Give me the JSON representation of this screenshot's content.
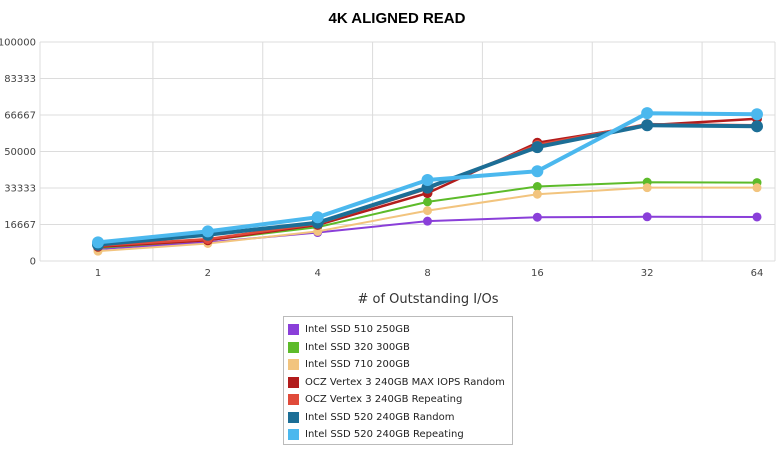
{
  "chart_data": {
    "type": "line",
    "title": "4K ALIGNED READ",
    "xlabel": "# of Outstanding I/Os",
    "ylabel": "",
    "categories": [
      "1",
      "2",
      "4",
      "8",
      "16",
      "32",
      "64"
    ],
    "yticks": [
      "0",
      "16667",
      "33333",
      "50000",
      "66667",
      "83333",
      "100000"
    ],
    "ylim": [
      0,
      100000
    ],
    "grid": true,
    "legend_position": "bottom",
    "series": [
      {
        "name": "Intel SSD 510 250GB",
        "color": "#8a3fd9",
        "values": [
          5500,
          8500,
          13000,
          18200,
          20000,
          20200,
          20100
        ]
      },
      {
        "name": "Intel SSD 320 300GB",
        "color": "#5dbb2a",
        "values": [
          6000,
          9500,
          15500,
          27000,
          34000,
          36000,
          35800
        ]
      },
      {
        "name": "Intel SSD 710 200GB",
        "color": "#f2c47e",
        "values": [
          4500,
          8000,
          13500,
          23000,
          30500,
          33500,
          33500
        ]
      },
      {
        "name": "OCZ Vertex 3 240GB MAX IOPS Random",
        "color": "#b21c1c",
        "values": [
          6500,
          9500,
          16500,
          31000,
          54000,
          62000,
          65000
        ]
      },
      {
        "name": "OCZ Vertex 3 240GB Repeating",
        "color": "#e04a3a",
        "values": [
          7000,
          10000,
          17000,
          33000,
          53000,
          62500,
          62000
        ]
      },
      {
        "name": "Intel SSD 520 240GB Random",
        "color": "#1c6e96",
        "values": [
          7500,
          12000,
          17500,
          33500,
          52000,
          62000,
          61500
        ]
      },
      {
        "name": "Intel SSD 520 240GB Repeating",
        "color": "#4bb8ee",
        "values": [
          8500,
          13500,
          20000,
          37000,
          41000,
          67500,
          67000
        ]
      }
    ]
  }
}
